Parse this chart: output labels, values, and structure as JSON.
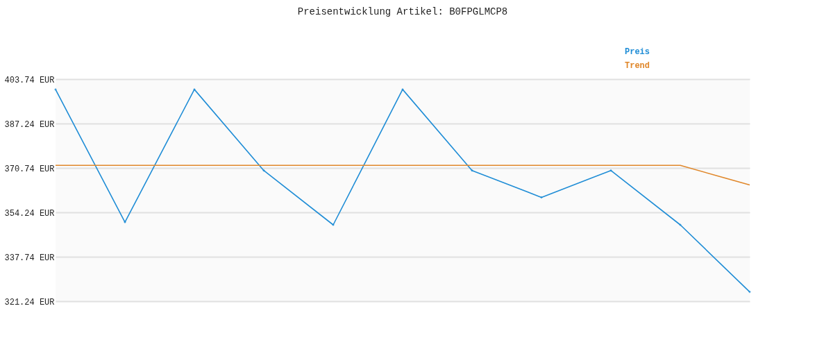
{
  "chart_data": {
    "type": "line",
    "title": "Preisentwicklung Artikel: B0FPGLMCP8",
    "categories": [
      null,
      null,
      null,
      null,
      null,
      null,
      null,
      null,
      null,
      null,
      null
    ],
    "series": [
      {
        "name": "Preis",
        "color": "#1f8dd6",
        "marker": "diamond",
        "values": [
          399.9,
          350.6,
          399.9,
          369.8,
          349.6,
          399.9,
          369.8,
          359.8,
          369.8,
          349.6,
          324.7
        ]
      },
      {
        "name": "Trend",
        "color": "#e0872a",
        "marker": "none",
        "values": [
          371.7,
          371.7,
          371.7,
          371.7,
          371.7,
          371.7,
          371.7,
          371.7,
          371.7,
          371.7,
          364.4
        ]
      }
    ],
    "ylim": [
      321.24,
      403.74
    ],
    "yticks": [
      {
        "value": 321.24,
        "label": "321.24 EUR"
      },
      {
        "value": 337.74,
        "label": "337.74 EUR"
      },
      {
        "value": 354.24,
        "label": "354.24 EUR"
      },
      {
        "value": 370.74,
        "label": "370.74 EUR"
      },
      {
        "value": 387.24,
        "label": "387.24 EUR"
      },
      {
        "value": 403.74,
        "label": "403.74 EUR"
      }
    ],
    "grid": "y",
    "legend": "top right",
    "tick_labels": "y"
  }
}
